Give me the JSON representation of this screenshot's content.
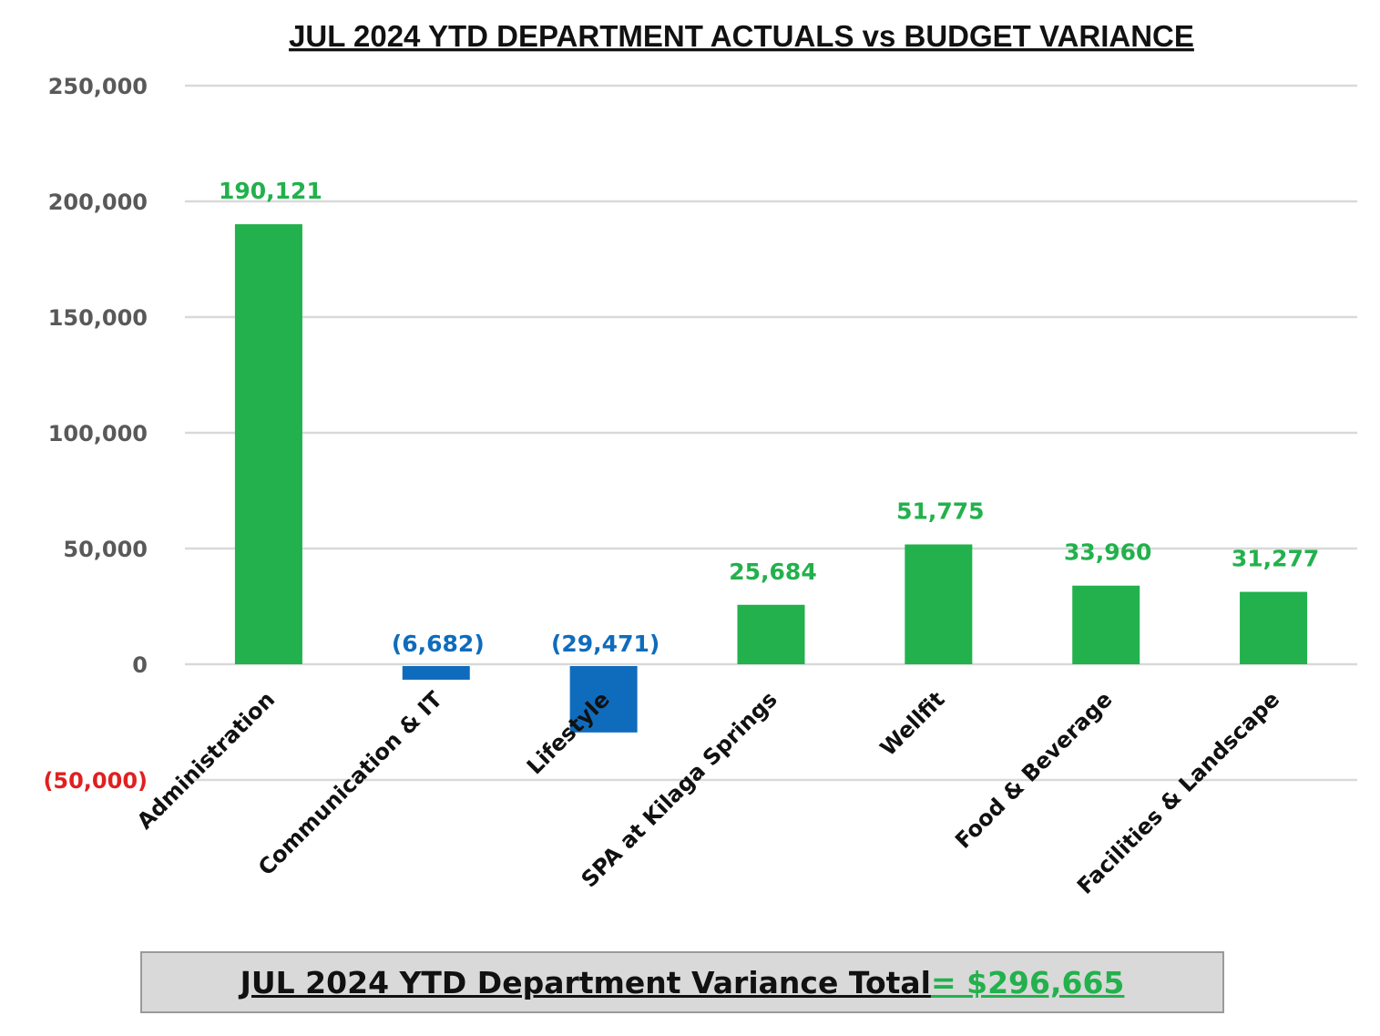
{
  "colors": {
    "positive": "#22b14c",
    "negative": "#0f6cbd",
    "negative_tick": "#e02020",
    "grid": "#d9d9d9"
  },
  "chart_data": {
    "type": "bar",
    "title": "JUL 2024 YTD DEPARTMENT ACTUALS vs BUDGET VARIANCE",
    "xlabel": "",
    "ylabel": "",
    "ylim": [
      -50000,
      250000
    ],
    "yticks": [
      250000,
      200000,
      150000,
      100000,
      50000,
      0,
      -50000
    ],
    "ytick_labels": [
      "250,000",
      "200,000",
      "150,000",
      "100,000",
      "50,000",
      "0",
      "(50,000)"
    ],
    "grid": true,
    "categories": [
      "Administration",
      "Communication & IT",
      "Lifestyle",
      "SPA at Kilaga Springs",
      "Wellfit",
      "Food & Beverage",
      "Facilities & Landscape"
    ],
    "values": [
      190121,
      -6682,
      -29471,
      25684,
      51775,
      33960,
      31277
    ],
    "data_labels": [
      "190,121",
      "(6,682)",
      "(29,471)",
      "25,684",
      "51,775",
      "33,960",
      "31,277"
    ]
  },
  "total": {
    "label": "JUL 2024 YTD Department Variance Total ",
    "value": "= $296,665"
  }
}
